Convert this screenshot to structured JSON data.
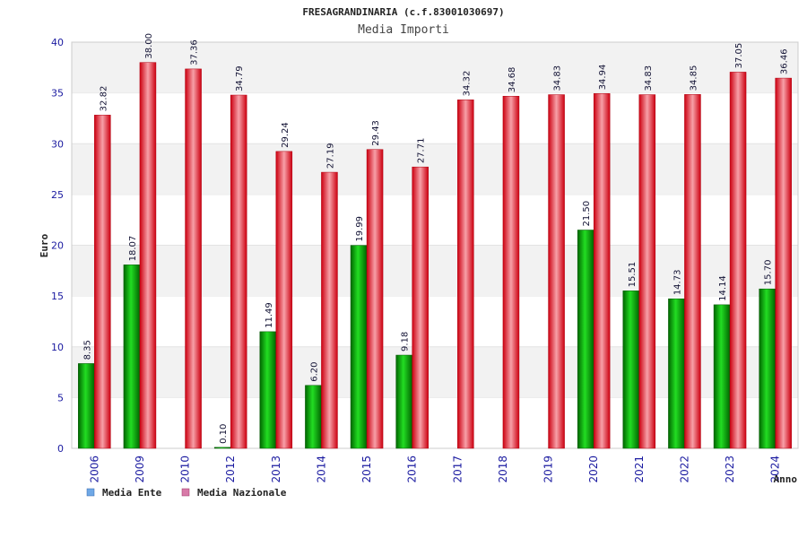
{
  "chart_data": {
    "type": "bar",
    "title": "FRESAGRANDINARIA (c.f.83001030697)",
    "subtitle": "Media Importi",
    "xlabel": "Anno",
    "ylabel": "Euro",
    "ylim": [
      0,
      40
    ],
    "yticks": [
      0,
      5,
      10,
      15,
      20,
      25,
      30,
      35,
      40
    ],
    "grid": "horizontal bands",
    "legend_position": "bottom-left",
    "categories": [
      "2006",
      "2009",
      "2010",
      "2012",
      "2013",
      "2014",
      "2015",
      "2016",
      "2017",
      "2018",
      "2019",
      "2020",
      "2021",
      "2022",
      "2023",
      "2024"
    ],
    "series": [
      {
        "name": "Media Ente",
        "color": "#00a000",
        "legend_color": "#6fa8e6",
        "values": [
          8.35,
          18.07,
          null,
          0.1,
          11.49,
          6.2,
          19.99,
          9.18,
          null,
          null,
          null,
          21.5,
          15.51,
          14.73,
          14.14,
          15.7
        ],
        "labels": [
          "8.35",
          "18.07",
          "",
          "0.10",
          "11.49",
          "6.20",
          "19.99",
          "9.18",
          "",
          "",
          "",
          "21.50",
          "15.51",
          "14.73",
          "14.14",
          "15.70"
        ]
      },
      {
        "name": "Media Nazionale",
        "color": "#e01020",
        "legend_color": "#d87aa8",
        "values": [
          32.82,
          38.0,
          37.36,
          34.79,
          29.24,
          27.19,
          29.43,
          27.71,
          34.32,
          34.68,
          34.83,
          34.94,
          34.83,
          34.85,
          37.05,
          36.46
        ],
        "labels": [
          "32.82",
          "38.00",
          "37.36",
          "34.79",
          "29.24",
          "27.19",
          "29.43",
          "27.71",
          "34.32",
          "34.68",
          "34.83",
          "34.94",
          "34.83",
          "34.85",
          "37.05",
          "36.46"
        ]
      }
    ]
  }
}
